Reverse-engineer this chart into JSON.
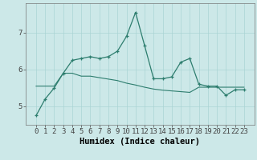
{
  "xlabel": "Humidex (Indice chaleur)",
  "background_color": "#cce8e8",
  "line_color": "#2d7d6e",
  "x_values": [
    0,
    1,
    2,
    3,
    4,
    5,
    6,
    7,
    8,
    9,
    10,
    11,
    12,
    13,
    14,
    15,
    16,
    17,
    18,
    19,
    20,
    21,
    22,
    23
  ],
  "y1_values": [
    4.75,
    5.2,
    5.5,
    5.9,
    6.25,
    6.3,
    6.35,
    6.3,
    6.35,
    6.5,
    6.9,
    7.55,
    6.65,
    5.75,
    5.75,
    5.8,
    6.2,
    6.3,
    5.6,
    5.55,
    5.55,
    5.3,
    5.45,
    5.45
  ],
  "y2_values": [
    5.55,
    5.55,
    5.55,
    5.9,
    5.9,
    5.82,
    5.82,
    5.78,
    5.74,
    5.7,
    5.63,
    5.58,
    5.52,
    5.47,
    5.44,
    5.42,
    5.4,
    5.38,
    5.52,
    5.52,
    5.52,
    5.52,
    5.52,
    5.52
  ],
  "ylim": [
    4.5,
    7.8
  ],
  "yticks": [
    5,
    6,
    7
  ],
  "grid_color": "#aad4d4",
  "tick_label_fontsize": 6.5,
  "axis_label_fontsize": 7.5
}
